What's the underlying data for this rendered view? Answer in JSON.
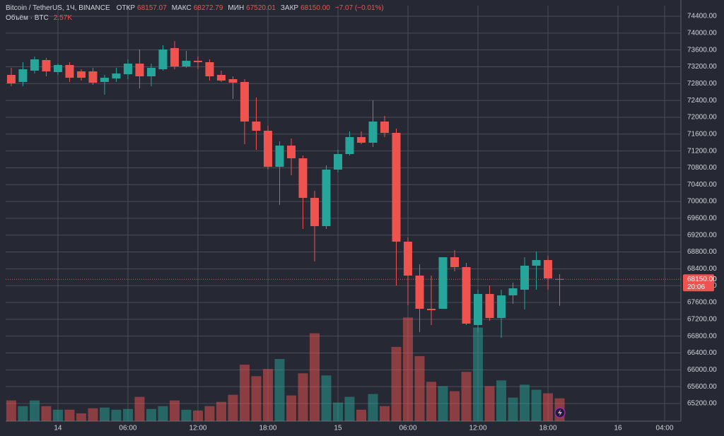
{
  "chart_data": {
    "type": "candlestick",
    "symbol": "Bitcoin / TetherUS, 1Ч, BINANCE",
    "ohlc_labels": {
      "open": "ОТКР",
      "open_value": "68157.07",
      "high": "МАКС",
      "high_value": "68272.79",
      "low": "МИН",
      "low_value": "67520.01",
      "close": "ЗАКР",
      "close_value": "68150.00",
      "change": "−7.07 (−0.01%)"
    },
    "volume_legend": {
      "title": "Объём · BTC",
      "value": "2.57K"
    },
    "price_label": {
      "value": 68150,
      "label": "68150.00",
      "time": "20:06"
    },
    "x": [
      -4,
      -3,
      -2,
      -1,
      0,
      1,
      2,
      3,
      4,
      5,
      6,
      7,
      8,
      9,
      10,
      11,
      12,
      13,
      14,
      15,
      16,
      17,
      18,
      19,
      20,
      21,
      22,
      23,
      24,
      25,
      26,
      27,
      28,
      29,
      30,
      31,
      32,
      33,
      34,
      35,
      36,
      37,
      38,
      39,
      40,
      41,
      42,
      43
    ],
    "open": [
      73007,
      72839,
      73107,
      73359,
      73074,
      73242,
      73090,
      73090,
      72839,
      72922,
      73023,
      73275,
      72973,
      73141,
      73644,
      73208,
      73342,
      73309,
      73007,
      72906,
      72839,
      71899,
      71680,
      70824,
      71328,
      71025,
      70085,
      69414,
      70757,
      71126,
      71529,
      71395,
      71899,
      71630,
      69045,
      68239,
      67450,
      67450,
      68675,
      68440,
      67064,
      67802,
      67232,
      67769,
      67903,
      68474,
      68608,
      68157.07
    ],
    "high": [
      73175,
      73309,
      73443,
      73410,
      73275,
      73309,
      73141,
      73175,
      73007,
      73175,
      73376,
      73611,
      73275,
      73712,
      73812,
      73577,
      73443,
      73376,
      73107,
      72973,
      72906,
      72469,
      71798,
      71428,
      71496,
      71093,
      70253,
      70858,
      71227,
      71664,
      71664,
      72402,
      72033,
      71731,
      69145,
      68507,
      68239,
      68675,
      68843,
      68541,
      67903,
      68004,
      67903,
      68071,
      68675,
      68809,
      68708,
      68272.79
    ],
    "low": [
      72738,
      72738,
      73040,
      72973,
      73007,
      72839,
      72872,
      72772,
      72536,
      72839,
      72906,
      72688,
      72738,
      73107,
      73141,
      73175,
      73141,
      72872,
      72839,
      72436,
      71361,
      71227,
      70757,
      69917,
      70622,
      69347,
      68574,
      69347,
      70690,
      71093,
      71361,
      71294,
      71529,
      68004,
      67534,
      66896,
      67064,
      67450,
      68340,
      67064,
      66896,
      67165,
      66762,
      67567,
      67433,
      67903,
      67903,
      67520.01
    ],
    "close": [
      72805,
      73141,
      73376,
      73090,
      73242,
      72939,
      72939,
      72822,
      72939,
      73040,
      73275,
      72973,
      73175,
      73611,
      73208,
      73342,
      73309,
      72973,
      72872,
      72822,
      71899,
      71680,
      70824,
      71328,
      71025,
      70085,
      69414,
      70757,
      71126,
      71529,
      71395,
      71899,
      71630,
      69045,
      68239,
      67450,
      67416,
      68675,
      68440,
      67097,
      67802,
      67232,
      67769,
      67937,
      68474,
      68608,
      68172,
      68150
    ],
    "volume": [
      2.33,
      1.69,
      2.33,
      1.69,
      1.29,
      1.29,
      0.88,
      1.45,
      1.53,
      1.29,
      1.37,
      2.73,
      1.37,
      1.69,
      2.33,
      1.29,
      1.2,
      1.69,
      2.17,
      2.97,
      6.35,
      5.06,
      5.86,
      6.99,
      2.89,
      5.38,
      9.88,
      5.14,
      2.09,
      2.73,
      1.29,
      3.05,
      1.69,
      8.35,
      11.65,
      7.31,
      4.42,
      3.94,
      3.37,
      5.54,
      10.52,
      3.94,
      4.58,
      2.65,
      4.1,
      3.53,
      3.13,
      2.57
    ],
    "up_color": "#26a69a",
    "down_color": "#ef5350",
    "xlim": [
      -4.48,
      53.39
    ],
    "xticks": [
      {
        "value": 0,
        "label": "14"
      },
      {
        "value": 6,
        "label": "06:00"
      },
      {
        "value": 12,
        "label": "12:00"
      },
      {
        "value": 18,
        "label": "18:00"
      },
      {
        "value": 24,
        "label": "15"
      },
      {
        "value": 30,
        "label": "06:00"
      },
      {
        "value": 36,
        "label": "12:00"
      },
      {
        "value": 42,
        "label": "18:00"
      },
      {
        "value": 48,
        "label": "16"
      },
      {
        "value": 52,
        "label": "04:00"
      }
    ],
    "ylim": [
      64780,
      74652
    ],
    "yticks": [
      {
        "value": 65200,
        "label": "65200.00"
      },
      {
        "value": 65600,
        "label": "65600.00"
      },
      {
        "value": 66000,
        "label": "66000.00"
      },
      {
        "value": 66400,
        "label": "66400.00"
      },
      {
        "value": 66800,
        "label": "66800.00"
      },
      {
        "value": 67200,
        "label": "67200.00"
      },
      {
        "value": 67600,
        "label": "67600.00"
      },
      {
        "value": 68000,
        "label": "68000.00"
      },
      {
        "value": 68400,
        "label": "68400.00"
      },
      {
        "value": 68800,
        "label": "68800.00"
      },
      {
        "value": 69200,
        "label": "69200.00"
      },
      {
        "value": 69600,
        "label": "69600.00"
      },
      {
        "value": 70000,
        "label": "70000.00"
      },
      {
        "value": 70400,
        "label": "70400.00"
      },
      {
        "value": 70800,
        "label": "70800.00"
      },
      {
        "value": 71200,
        "label": "71200.00"
      },
      {
        "value": 71600,
        "label": "71600.00"
      },
      {
        "value": 72000,
        "label": "72000.00"
      },
      {
        "value": 72400,
        "label": "72400.00"
      },
      {
        "value": 72800,
        "label": "72800.00"
      },
      {
        "value": 73200,
        "label": "73200.00"
      },
      {
        "value": 73600,
        "label": "73600.00"
      },
      {
        "value": 74000,
        "label": "74000.00"
      },
      {
        "value": 74400,
        "label": "74400.00"
      }
    ],
    "volume_lim": [
      0,
      46.7
    ],
    "grid": true
  }
}
